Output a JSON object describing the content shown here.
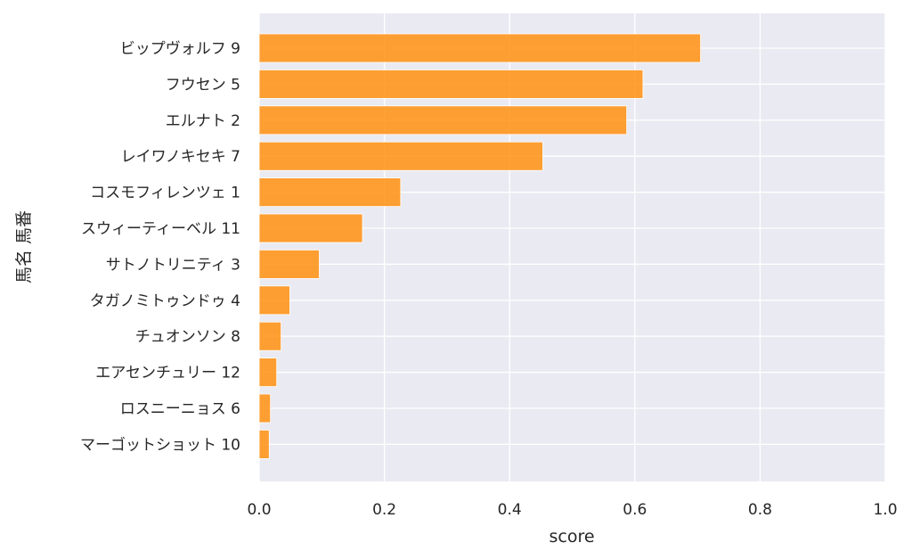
{
  "chart_data": {
    "type": "bar",
    "orientation": "horizontal",
    "title": "",
    "xlabel": "score",
    "ylabel": "馬名 馬番",
    "xlim": [
      0.0,
      1.0
    ],
    "xticks": [
      "0.0",
      "0.2",
      "0.4",
      "0.6",
      "0.8",
      "1.0"
    ],
    "grid": true,
    "bar_color": "#ff9010",
    "plot_background": "#eaeaf2",
    "categories": [
      "ビップヴォルフ 9",
      "フウセン 5",
      "エルナト 2",
      "レイワノキセキ 7",
      "コスモフィレンツェ 1",
      "スウィーティーベル 11",
      "サトノトリニティ 3",
      "タガノミトゥンドゥ 4",
      "チュオンソン 8",
      "エアセンチュリー 12",
      "ロスニーニョス 6",
      "マーゴットショット 10"
    ],
    "values": [
      0.705,
      0.613,
      0.587,
      0.453,
      0.226,
      0.165,
      0.096,
      0.049,
      0.035,
      0.028,
      0.018,
      0.016
    ]
  }
}
